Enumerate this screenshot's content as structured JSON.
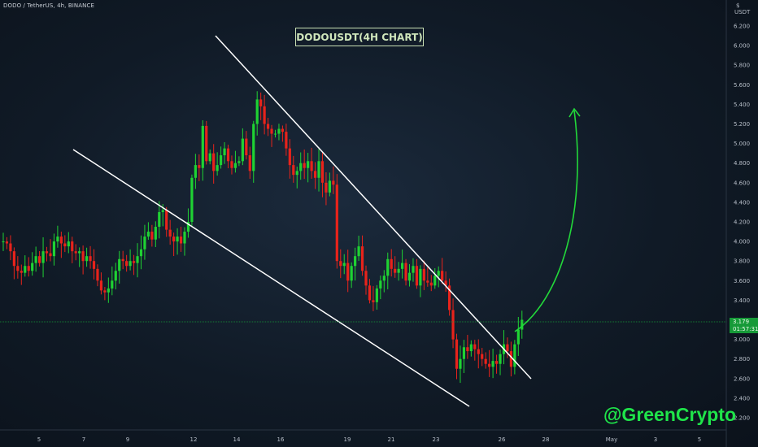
{
  "header": {
    "ticker": "DODO / TetherUS, 4h, BINANCE"
  },
  "annotation": {
    "title_box": "DODOUSDT(4H CHART)",
    "watermark": "@GreenCrypto"
  },
  "price_axis": {
    "unit_top": "$",
    "unit_bottom": "USDT",
    "current_price": "3.179",
    "countdown": "01:57:31"
  },
  "colors": {
    "up": "#1fd233",
    "down": "#e8231b",
    "trendline": "#ffffff",
    "arrow": "#22d83a",
    "current_price_line": "#169a38",
    "watermark": "#1fe44a"
  },
  "chart_data": {
    "type": "candlestick",
    "title": "DODOUSDT(4H CHART)",
    "ylim": [
      2.0,
      6.4
    ],
    "y_ticks": [
      "6.200",
      "6.000",
      "5.800",
      "5.600",
      "5.400",
      "5.200",
      "5.000",
      "4.800",
      "4.600",
      "4.400",
      "4.200",
      "4.000",
      "3.800",
      "3.600",
      "3.400",
      "3.200",
      "3.000",
      "2.800",
      "2.600",
      "2.400",
      "2.200"
    ],
    "x_ticks": [
      "5",
      "7",
      "9",
      "12",
      "14",
      "16",
      "19",
      "21",
      "23",
      "26",
      "28",
      "May",
      "3",
      "5"
    ],
    "grid": false,
    "current_price": 3.179,
    "pattern": "falling wedge",
    "trendlines": [
      {
        "name": "upper",
        "from": [
          "Apr 12",
          6.2
        ],
        "to": [
          "Apr 27",
          2.62
        ]
      },
      {
        "name": "lower",
        "from": [
          "Apr 6",
          4.6
        ],
        "to": [
          "Apr 25",
          2.33
        ]
      }
    ],
    "projection": {
      "from": [
        "Apr 27",
        3.12
      ],
      "to": [
        "Apr 29",
        5.35
      ]
    },
    "closes": [
      4.0,
      3.98,
      3.9,
      3.75,
      3.7,
      3.68,
      3.75,
      3.7,
      3.78,
      3.85,
      3.78,
      3.9,
      3.88,
      3.85,
      4.0,
      4.05,
      3.98,
      3.95,
      4.0,
      3.9,
      3.88,
      3.9,
      3.8,
      3.85,
      3.8,
      3.72,
      3.6,
      3.5,
      3.48,
      3.52,
      3.6,
      3.7,
      3.82,
      3.8,
      3.75,
      3.8,
      3.78,
      3.85,
      3.92,
      4.05,
      4.1,
      4.02,
      4.15,
      4.3,
      4.32,
      4.12,
      4.05,
      4.0,
      4.05,
      3.98,
      4.1,
      4.2,
      4.65,
      4.78,
      4.75,
      5.18,
      4.82,
      4.9,
      4.72,
      4.78,
      4.88,
      4.95,
      4.82,
      4.75,
      4.8,
      4.82,
      5.05,
      4.88,
      4.72,
      5.2,
      5.45,
      5.38,
      5.2,
      5.15,
      5.1,
      5.1,
      5.15,
      5.12,
      4.95,
      4.78,
      4.68,
      4.72,
      4.8,
      4.75,
      4.82,
      4.72,
      4.65,
      4.82,
      4.6,
      4.5,
      4.62,
      4.58,
      3.8,
      3.75,
      3.78,
      3.6,
      3.75,
      3.85,
      3.95,
      3.7,
      3.55,
      3.4,
      3.38,
      3.52,
      3.6,
      3.65,
      3.82,
      3.72,
      3.68,
      3.72,
      3.78,
      3.6,
      3.68,
      3.75,
      3.55,
      3.72,
      3.6,
      3.58,
      3.55,
      3.65,
      3.7,
      3.6,
      3.55,
      3.3,
      3.0,
      2.7,
      2.8,
      2.92,
      2.88,
      2.95,
      2.9,
      2.85,
      2.8,
      2.75,
      2.72,
      2.78,
      2.75,
      2.85,
      2.95,
      2.88,
      2.72,
      2.95,
      3.1,
      3.2
    ]
  }
}
